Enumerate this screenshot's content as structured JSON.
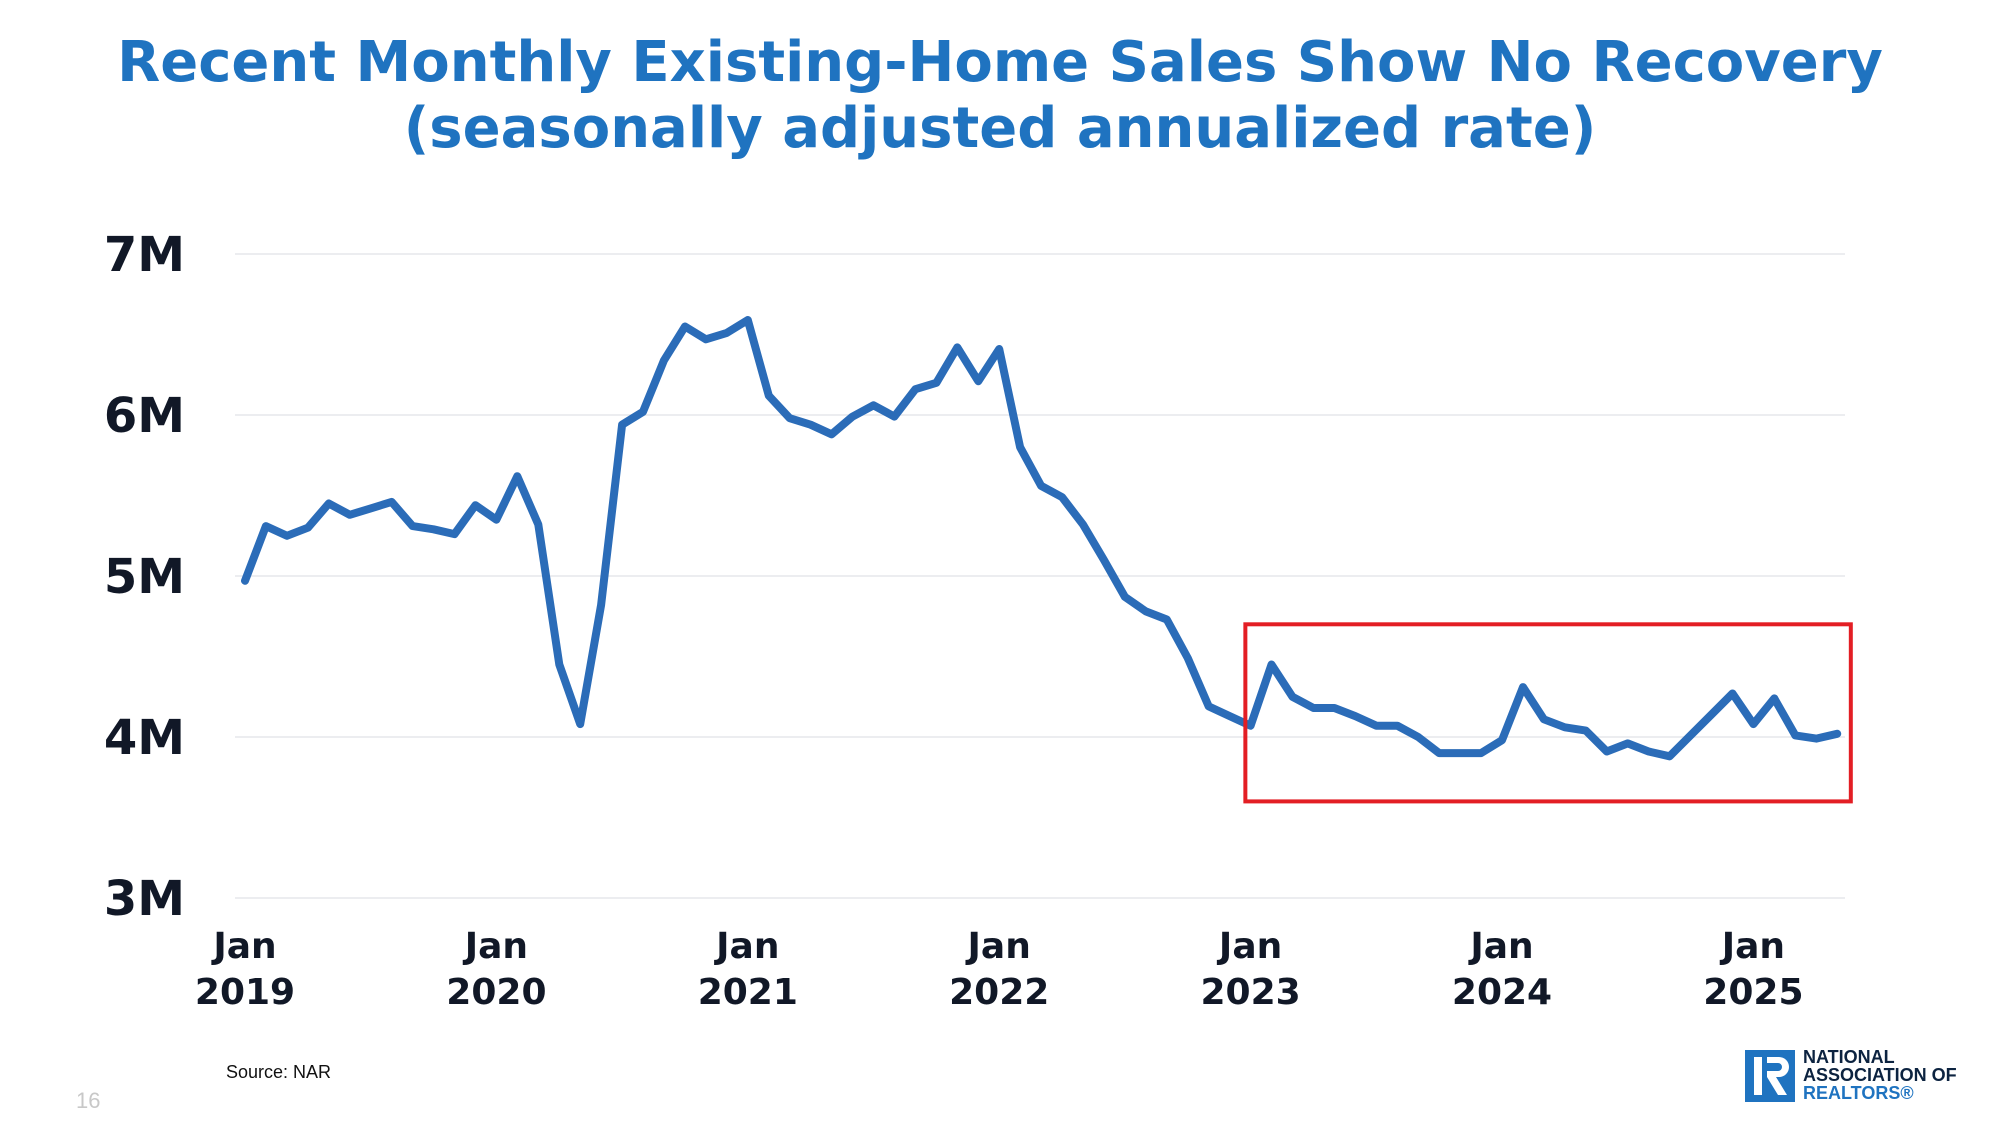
{
  "title": {
    "line1": "Recent Monthly Existing-Home Sales Show No Recovery",
    "line2": "(seasonally adjusted annualized rate)"
  },
  "colors": {
    "title": "#1f73c0",
    "series": "#2b6cb8",
    "highlight_box": "#e31e24",
    "grid": "#e5e7eb",
    "tick_text": "#111827"
  },
  "chart_data": {
    "type": "line",
    "title": "Recent Monthly Existing-Home Sales Show No Recovery (seasonally adjusted annualized rate)",
    "y_ticks": [
      "7M",
      "6M",
      "5M",
      "4M",
      "3M"
    ],
    "y_tick_values": [
      7,
      6,
      5,
      4,
      3
    ],
    "ylim": [
      3,
      7
    ],
    "y_unit": "millions",
    "x_ticks": [
      {
        "line1": "Jan",
        "line2": "2019",
        "month_index": 0
      },
      {
        "line1": "Jan",
        "line2": "2020",
        "month_index": 12
      },
      {
        "line1": "Jan",
        "line2": "2021",
        "month_index": 24
      },
      {
        "line1": "Jan",
        "line2": "2022",
        "month_index": 36
      },
      {
        "line1": "Jan",
        "line2": "2023",
        "month_index": 48
      },
      {
        "line1": "Jan",
        "line2": "2024",
        "month_index": 60
      },
      {
        "line1": "Jan",
        "line2": "2025",
        "month_index": 72
      }
    ],
    "x_start": "2019-01",
    "grid": true,
    "legend": "none",
    "series": [
      {
        "values": [
          4.97,
          5.31,
          5.25,
          5.3,
          5.45,
          5.38,
          5.42,
          5.46,
          5.31,
          5.29,
          5.26,
          5.44,
          5.35,
          5.62,
          5.32,
          4.45,
          4.08,
          4.82,
          5.94,
          6.02,
          6.34,
          6.55,
          6.47,
          6.51,
          6.59,
          6.12,
          5.98,
          5.94,
          5.88,
          5.99,
          6.06,
          5.99,
          6.16,
          6.2,
          6.42,
          6.21,
          6.41,
          5.8,
          5.56,
          5.49,
          5.32,
          5.1,
          4.87,
          4.78,
          4.73,
          4.49,
          4.19,
          4.13,
          4.07,
          4.45,
          4.25,
          4.18,
          4.18,
          4.13,
          4.07,
          4.07,
          4.0,
          3.9,
          3.9,
          3.9,
          3.98,
          4.31,
          4.11,
          4.06,
          4.04,
          3.91,
          3.96,
          3.91,
          3.88,
          4.01,
          4.14,
          4.27,
          4.08,
          4.24,
          4.01,
          3.99,
          4.02
        ]
      }
    ],
    "highlight": {
      "x_range": [
        47.75,
        76.65
      ],
      "y_range": [
        3.6,
        4.7
      ],
      "color": "#e31e24"
    }
  },
  "source": "Source: NAR",
  "page_number": "16",
  "logo": {
    "line1": "NATIONAL",
    "line2": "ASSOCIATION OF",
    "line3": "REALTORS®",
    "mark_letter": "R"
  }
}
